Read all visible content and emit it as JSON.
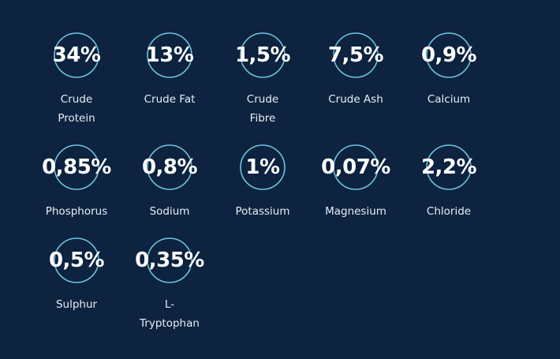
{
  "accent_color": "#6cc6dd",
  "background_color": "#0d2340",
  "rows": [
    [
      {
        "value": "34%",
        "label_lines": [
          "Crude",
          "Protein"
        ]
      },
      {
        "value": "13%",
        "label_lines": [
          "Crude Fat"
        ]
      },
      {
        "value": "1,5%",
        "label_lines": [
          "Crude",
          "Fibre"
        ]
      },
      {
        "value": "7,5%",
        "label_lines": [
          "Crude Ash"
        ]
      },
      {
        "value": "0,9%",
        "label_lines": [
          "Calcium"
        ]
      }
    ],
    [
      {
        "value": "0,85%",
        "label_lines": [
          "Phosphorus"
        ]
      },
      {
        "value": "0,8%",
        "label_lines": [
          "Sodium"
        ]
      },
      {
        "value": "1%",
        "label_lines": [
          "Potassium"
        ]
      },
      {
        "value": "0,07%",
        "label_lines": [
          "Magnesium"
        ]
      },
      {
        "value": "2,2%",
        "label_lines": [
          "Chloride"
        ]
      }
    ],
    [
      {
        "value": "0,5%",
        "label_lines": [
          "Sulphur"
        ]
      },
      {
        "value": "0,35%",
        "label_lines": [
          "L-",
          "Tryptophan"
        ]
      }
    ]
  ]
}
